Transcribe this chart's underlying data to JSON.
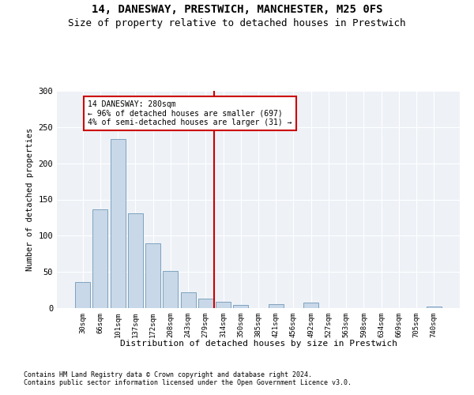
{
  "title": "14, DANESWAY, PRESTWICH, MANCHESTER, M25 0FS",
  "subtitle": "Size of property relative to detached houses in Prestwich",
  "xlabel": "Distribution of detached houses by size in Prestwich",
  "ylabel": "Number of detached properties",
  "bar_color": "#c8d8e8",
  "bar_edge_color": "#7098b8",
  "categories": [
    "30sqm",
    "66sqm",
    "101sqm",
    "137sqm",
    "172sqm",
    "208sqm",
    "243sqm",
    "279sqm",
    "314sqm",
    "350sqm",
    "385sqm",
    "421sqm",
    "456sqm",
    "492sqm",
    "527sqm",
    "563sqm",
    "598sqm",
    "634sqm",
    "669sqm",
    "705sqm",
    "740sqm"
  ],
  "values": [
    36,
    136,
    233,
    131,
    90,
    51,
    22,
    13,
    9,
    4,
    0,
    6,
    0,
    8,
    0,
    0,
    0,
    0,
    0,
    0,
    2
  ],
  "vline_x": 7.5,
  "vline_color": "#cc0000",
  "annotation_text": "14 DANESWAY: 280sqm\n← 96% of detached houses are smaller (697)\n4% of semi-detached houses are larger (31) →",
  "annotation_box_color": "#ffffff",
  "annotation_box_edge_color": "#cc0000",
  "ylim": [
    0,
    300
  ],
  "yticks": [
    0,
    50,
    100,
    150,
    200,
    250,
    300
  ],
  "footnote1": "Contains HM Land Registry data © Crown copyright and database right 2024.",
  "footnote2": "Contains public sector information licensed under the Open Government Licence v3.0.",
  "bg_color": "#eef2f7",
  "title_fontsize": 10,
  "subtitle_fontsize": 9
}
